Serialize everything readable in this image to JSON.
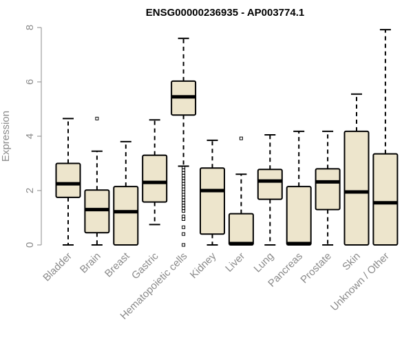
{
  "chart_data": {
    "type": "box",
    "title": "ENSG00000236935 - AP003774.1",
    "xlabel": "",
    "ylabel": "Expression",
    "ylim": [
      0,
      8
    ],
    "yticks": [
      0,
      2,
      4,
      6,
      8
    ],
    "grid": false,
    "box_fill": "#ede5cc",
    "box_stroke": "#000000",
    "axis_color": "#8a8a8a",
    "categories": [
      "Bladder",
      "Brain",
      "Breast",
      "Gastric",
      "Hematopoietic cells",
      "Kidney",
      "Liver",
      "Lung",
      "Pancreas",
      "Prostate",
      "Skin",
      "Unknown / Other"
    ],
    "boxes": [
      {
        "category": "Bladder",
        "whisker_low": 0.0,
        "q1": 1.75,
        "median": 2.25,
        "q3": 3.0,
        "whisker_high": 4.65,
        "outliers": []
      },
      {
        "category": "Brain",
        "whisker_low": 0.0,
        "q1": 0.45,
        "median": 1.3,
        "q3": 2.02,
        "whisker_high": 3.45,
        "outliers": [
          4.65
        ]
      },
      {
        "category": "Breast",
        "whisker_low": 0.0,
        "q1": 0.0,
        "median": 1.22,
        "q3": 2.15,
        "whisker_high": 3.8,
        "outliers": []
      },
      {
        "category": "Gastric",
        "whisker_low": 0.75,
        "q1": 1.58,
        "median": 2.3,
        "q3": 3.3,
        "whisker_high": 4.6,
        "outliers": []
      },
      {
        "category": "Hematopoietic cells",
        "whisker_low": 2.9,
        "q1": 4.78,
        "median": 5.45,
        "q3": 6.03,
        "whisker_high": 7.6,
        "outliers": [
          2.85,
          2.75,
          2.65,
          2.55,
          2.45,
          2.35,
          2.25,
          2.15,
          2.05,
          1.95,
          1.85,
          1.75,
          1.65,
          1.55,
          1.45,
          1.35,
          1.25,
          1.05,
          0.95,
          0.65,
          0.4,
          0.0
        ]
      },
      {
        "category": "Kidney",
        "whisker_low": 0.0,
        "q1": 0.4,
        "median": 2.0,
        "q3": 2.83,
        "whisker_high": 3.85,
        "outliers": []
      },
      {
        "category": "Liver",
        "whisker_low": 0.0,
        "q1": 0.0,
        "median": 0.05,
        "q3": 1.15,
        "whisker_high": 2.6,
        "outliers": [
          3.92
        ]
      },
      {
        "category": "Lung",
        "whisker_low": 0.0,
        "q1": 1.68,
        "median": 2.35,
        "q3": 2.78,
        "whisker_high": 4.05,
        "outliers": []
      },
      {
        "category": "Pancreas",
        "whisker_low": 0.0,
        "q1": 0.0,
        "median": 0.05,
        "q3": 2.15,
        "whisker_high": 4.18,
        "outliers": []
      },
      {
        "category": "Prostate",
        "whisker_low": 0.0,
        "q1": 1.3,
        "median": 2.32,
        "q3": 2.8,
        "whisker_high": 4.18,
        "outliers": []
      },
      {
        "category": "Skin",
        "whisker_low": 0.0,
        "q1": 0.0,
        "median": 1.95,
        "q3": 4.18,
        "whisker_high": 5.55,
        "outliers": []
      },
      {
        "category": "Unknown / Other",
        "whisker_low": 0.0,
        "q1": 0.0,
        "median": 1.55,
        "q3": 3.35,
        "whisker_high": 7.92,
        "outliers": []
      }
    ]
  }
}
